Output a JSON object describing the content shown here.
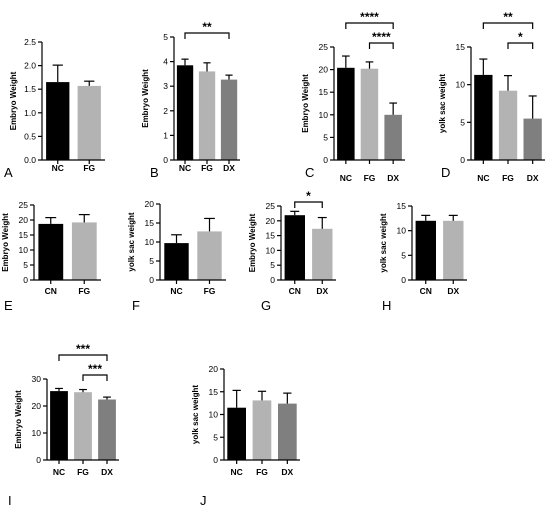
{
  "chart_data": [
    {
      "panel": "A",
      "type": "bar",
      "ylabel": "Embryo Weight",
      "categories": [
        "NC",
        "FG"
      ],
      "values": [
        1.65,
        1.57
      ],
      "errors": [
        0.36,
        0.1
      ],
      "ylim": [
        0,
        2.5
      ],
      "yticks": [
        "0.0",
        "0.5",
        "1.0",
        "1.5",
        "2.0",
        "2.5"
      ],
      "colors": [
        "#000000",
        "#b3b3b3"
      ],
      "significance": []
    },
    {
      "panel": "B",
      "type": "bar",
      "ylabel": "Embryo Weight",
      "categories": [
        "NC",
        "FG",
        "DX"
      ],
      "values": [
        3.85,
        3.6,
        3.27
      ],
      "errors": [
        0.25,
        0.35,
        0.18
      ],
      "ylim": [
        0,
        5
      ],
      "yticks": [
        "0",
        "1",
        "2",
        "3",
        "4",
        "5"
      ],
      "colors": [
        "#000000",
        "#b3b3b3",
        "#7f7f7f"
      ],
      "significance": [
        {
          "from": 0,
          "to": 2,
          "label": "**"
        }
      ]
    },
    {
      "panel": "C",
      "type": "bar",
      "ylabel": "Embryo Weight",
      "categories": [
        "NC",
        "FG",
        "DX"
      ],
      "values": [
        20.4,
        20.2,
        10
      ],
      "errors": [
        2.6,
        1.5,
        2.6
      ],
      "ylim": [
        0,
        25
      ],
      "yticks": [
        "0",
        "5",
        "10",
        "15",
        "20",
        "25"
      ],
      "colors": [
        "#000000",
        "#b3b3b3",
        "#7f7f7f"
      ],
      "significance": [
        {
          "from": 0,
          "to": 2,
          "label": "****"
        },
        {
          "from": 1,
          "to": 2,
          "label": "****"
        }
      ]
    },
    {
      "panel": "D",
      "type": "bar",
      "ylabel": "yolk sac weight",
      "categories": [
        "NC",
        "FG",
        "DX"
      ],
      "values": [
        11.3,
        9.2,
        5.5
      ],
      "errors": [
        2.1,
        2.0,
        3.0
      ],
      "ylim": [
        0,
        15
      ],
      "yticks": [
        "0",
        "5",
        "10",
        "15"
      ],
      "colors": [
        "#000000",
        "#b3b3b3",
        "#7f7f7f"
      ],
      "significance": [
        {
          "from": 0,
          "to": 2,
          "label": "**"
        },
        {
          "from": 1,
          "to": 2,
          "label": "*"
        }
      ]
    },
    {
      "panel": "E",
      "type": "bar",
      "ylabel": "Embryo Weight",
      "categories": [
        "CN",
        "FG"
      ],
      "values": [
        18.7,
        19.2
      ],
      "errors": [
        2.1,
        2.6
      ],
      "ylim": [
        0,
        25
      ],
      "yticks": [
        "0",
        "5",
        "10",
        "15",
        "20",
        "25"
      ],
      "colors": [
        "#000000",
        "#b3b3b3"
      ],
      "significance": []
    },
    {
      "panel": "F",
      "type": "bar",
      "ylabel": "yolk sac weight",
      "categories": [
        "NC",
        "FG"
      ],
      "values": [
        9.7,
        12.8
      ],
      "errors": [
        2.2,
        3.4
      ],
      "ylim": [
        0,
        20
      ],
      "yticks": [
        "0",
        "5",
        "10",
        "15",
        "20"
      ],
      "colors": [
        "#000000",
        "#b3b3b3"
      ],
      "significance": []
    },
    {
      "panel": "G",
      "type": "bar",
      "ylabel": "Embryo Weight",
      "categories": [
        "CN",
        "DX"
      ],
      "values": [
        21.9,
        17.3
      ],
      "errors": [
        1.3,
        3.8
      ],
      "ylim": [
        0,
        25
      ],
      "yticks": [
        "0",
        "5",
        "10",
        "15",
        "20",
        "25"
      ],
      "colors": [
        "#000000",
        "#b3b3b3"
      ],
      "significance": [
        {
          "from": 0,
          "to": 1,
          "label": "*"
        }
      ]
    },
    {
      "panel": "H",
      "type": "bar",
      "ylabel": "yolk sac weight",
      "categories": [
        "CN",
        "DX"
      ],
      "values": [
        12,
        12
      ],
      "errors": [
        1.1,
        1.1
      ],
      "ylim": [
        0,
        15
      ],
      "yticks": [
        "0",
        "5",
        "10",
        "15"
      ],
      "colors": [
        "#000000",
        "#b3b3b3"
      ],
      "significance": []
    },
    {
      "panel": "I",
      "type": "bar",
      "ylabel": "Embryo Weight",
      "categories": [
        "NC",
        "FG",
        "DX"
      ],
      "values": [
        25.5,
        25.1,
        22.4
      ],
      "errors": [
        1.0,
        1.0,
        0.9
      ],
      "ylim": [
        0,
        30
      ],
      "yticks": [
        "0",
        "10",
        "20",
        "30"
      ],
      "colors": [
        "#000000",
        "#b3b3b3",
        "#7f7f7f"
      ],
      "significance": [
        {
          "from": 0,
          "to": 2,
          "label": "***"
        },
        {
          "from": 1,
          "to": 2,
          "label": "***"
        }
      ]
    },
    {
      "panel": "J",
      "type": "bar",
      "ylabel": "yolk sac weight",
      "categories": [
        "NC",
        "FG",
        "DX"
      ],
      "values": [
        11.5,
        13.1,
        12.4
      ],
      "errors": [
        3.8,
        2.0,
        2.3
      ],
      "ylim": [
        0,
        20
      ],
      "yticks": [
        "0",
        "5",
        "10",
        "15",
        "20"
      ],
      "colors": [
        "#000000",
        "#b3b3b3",
        "#7f7f7f"
      ],
      "significance": []
    }
  ]
}
